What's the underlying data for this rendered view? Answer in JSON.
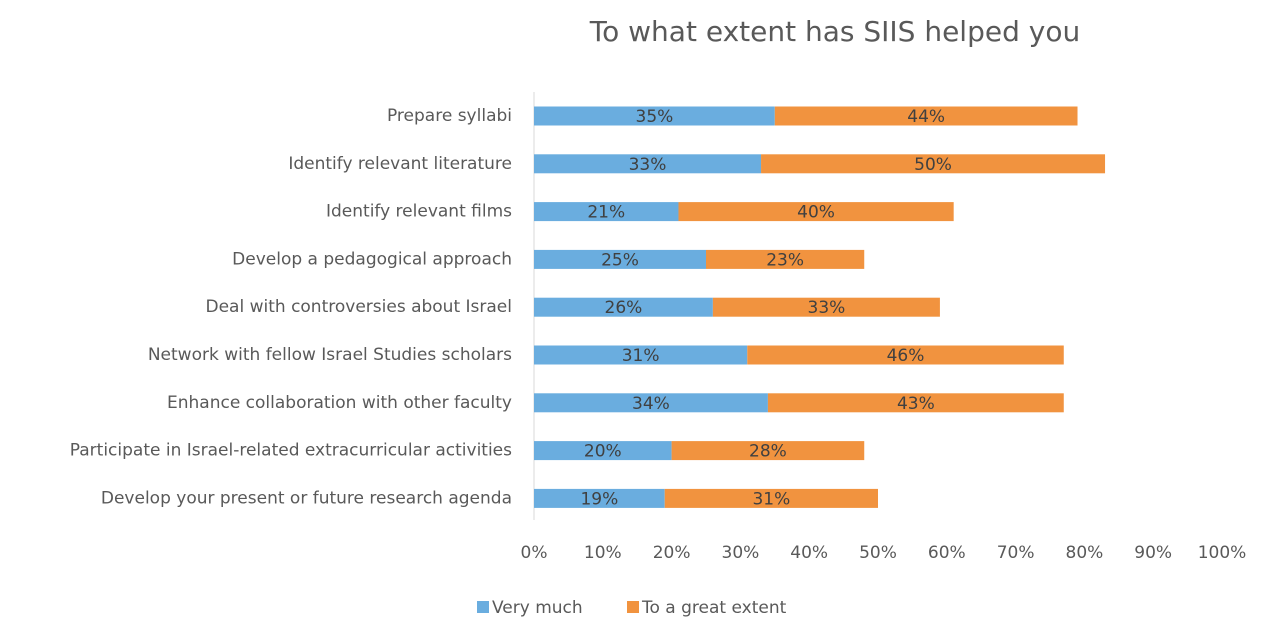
{
  "chart_data": {
    "type": "stacked-barh",
    "title": "To what extent has SIIS helped you",
    "categories": [
      "Prepare syllabi",
      "Identify relevant literature",
      "Identify relevant films",
      "Develop a pedagogical approach",
      "Deal  with controversies about Israel",
      "Network with fellow Israel Studies scholars",
      "Enhance collaboration with other faculty",
      "Participate in Israel-related extracurricular activities",
      "Develop your present or future research agenda"
    ],
    "series": [
      {
        "name": "Very much",
        "color": "#6aaddf",
        "values": [
          35,
          33,
          21,
          25,
          26,
          31,
          34,
          20,
          19
        ],
        "value_labels": [
          "35%",
          "33%",
          "21%",
          "25%",
          "26%",
          "31%",
          "34%",
          "20%",
          "19%"
        ]
      },
      {
        "name": "To a great extent",
        "color": "#f1933f",
        "values": [
          44,
          50,
          40,
          23,
          33,
          46,
          43,
          28,
          31
        ],
        "value_labels": [
          "44%",
          "50%",
          "40%",
          "23%",
          "33%",
          "46%",
          "43%",
          "28%",
          "31%"
        ]
      }
    ],
    "xlim": [
      0,
      100
    ],
    "xticks": [
      {
        "value": 0,
        "label": "0%"
      },
      {
        "value": 10,
        "label": "10%"
      },
      {
        "value": 20,
        "label": "20%"
      },
      {
        "value": 30,
        "label": "30%"
      },
      {
        "value": 40,
        "label": "40%"
      },
      {
        "value": 50,
        "label": "50%"
      },
      {
        "value": 60,
        "label": "60%"
      },
      {
        "value": 70,
        "label": "70%"
      },
      {
        "value": 80,
        "label": "80%"
      },
      {
        "value": 90,
        "label": "90%"
      },
      {
        "value": 100,
        "label": "100%"
      }
    ],
    "legend": "bottom"
  }
}
